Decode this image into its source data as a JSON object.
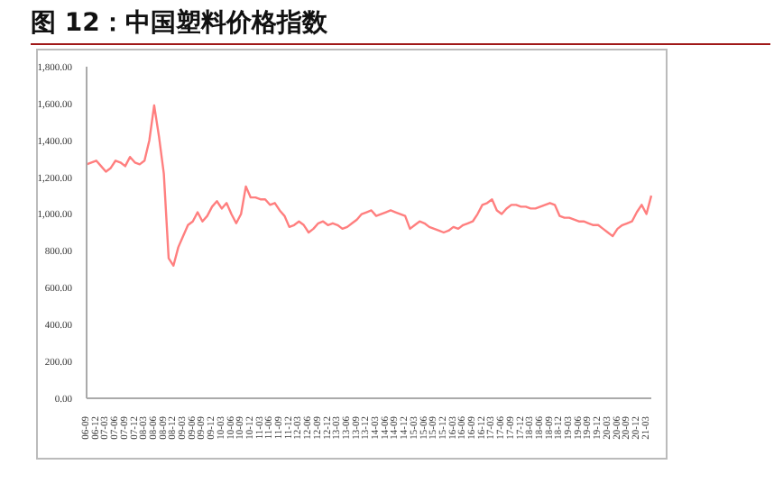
{
  "chart_data": {
    "type": "line",
    "title": "图 12：中国塑料价格指数",
    "categories": [
      "06-09",
      null,
      "06-12",
      null,
      "07-03",
      null,
      "07-06",
      null,
      "07-09",
      null,
      "07-12",
      null,
      "08-03",
      null,
      "08-06",
      null,
      "08-09",
      null,
      "08-12",
      null,
      "09-03",
      null,
      "09-06",
      null,
      "09-09",
      null,
      "09-12",
      null,
      "10-03",
      null,
      "10-06",
      null,
      "10-09",
      null,
      "10-12",
      null,
      "11-03",
      null,
      "11-06",
      null,
      "11-09",
      null,
      "11-12",
      null,
      "12-03",
      null,
      "12-06",
      null,
      "12-09",
      null,
      "12-12",
      null,
      "13-03",
      null,
      "13-06",
      null,
      "13-09",
      null,
      "13-12",
      null,
      "14-03",
      null,
      "14-06",
      null,
      "14-09",
      null,
      "14-12",
      null,
      "15-03",
      null,
      "15-06",
      null,
      "15-09",
      null,
      "15-12",
      null,
      "16-03",
      null,
      "16-06",
      null,
      "16-09",
      null,
      "16-12",
      null,
      "17-03",
      null,
      "17-06",
      null,
      "17-09",
      null,
      "17-12",
      null,
      "18-03",
      null,
      "18-06",
      null,
      "18-09",
      null,
      "18-12",
      null,
      "19-03",
      null,
      "19-06",
      null,
      "19-09",
      null,
      "19-12",
      null,
      "20-03",
      null,
      "20-06",
      null,
      "20-09",
      null,
      "20-12",
      null,
      "21-03",
      null
    ],
    "series": [
      {
        "color": "#ff7f7f",
        "values": [
          1270,
          1280,
          1290,
          1260,
          1230,
          1250,
          1290,
          1280,
          1260,
          1310,
          1280,
          1270,
          1290,
          1400,
          1590,
          1420,
          1220,
          760,
          720,
          820,
          880,
          940,
          960,
          1010,
          960,
          990,
          1040,
          1070,
          1030,
          1060,
          1000,
          950,
          1000,
          1150,
          1090,
          1090,
          1080,
          1080,
          1050,
          1060,
          1020,
          990,
          930,
          940,
          960,
          940,
          900,
          920,
          950,
          960,
          940,
          950,
          940,
          920,
          930,
          950,
          970,
          1000,
          1010,
          1020,
          990,
          1000,
          1010,
          1020,
          1010,
          1000,
          990,
          920,
          940,
          960,
          950,
          930,
          920,
          910,
          900,
          910,
          930,
          920,
          940,
          950,
          960,
          1000,
          1050,
          1060,
          1080,
          1020,
          1000,
          1030,
          1050,
          1050,
          1040,
          1040,
          1030,
          1030,
          1040,
          1050,
          1060,
          1050,
          990,
          980,
          980,
          970,
          960,
          960,
          950,
          940,
          940,
          920,
          900,
          880,
          920,
          940,
          950,
          960,
          1010,
          1050,
          1000,
          1100
        ]
      }
    ],
    "ylim": [
      0,
      1800
    ],
    "yticks": [
      {
        "value": 0,
        "label": "0.00"
      },
      {
        "value": 200,
        "label": "200.00"
      },
      {
        "value": 400,
        "label": "400.00"
      },
      {
        "value": 600,
        "label": "600.00"
      },
      {
        "value": 800,
        "label": "800.00"
      },
      {
        "value": 1000,
        "label": "1,000.00"
      },
      {
        "value": 1200,
        "label": "1,200.00"
      },
      {
        "value": 1400,
        "label": "1,400.00"
      },
      {
        "value": 1600,
        "label": "1,600.00"
      },
      {
        "value": 1800,
        "label": "1,800.00"
      }
    ],
    "grid": false,
    "legend": false,
    "marker": "none",
    "line_style": "solid"
  }
}
